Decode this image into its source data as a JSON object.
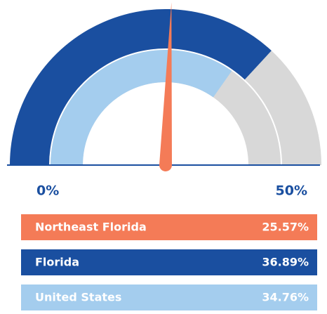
{
  "chart_data": {
    "type": "gauge",
    "ylim": [
      0,
      50
    ],
    "yticks": [
      {
        "value": 0,
        "label": "0%"
      },
      {
        "value": 50,
        "label": "50%"
      }
    ],
    "series": [
      {
        "name": "Northeast Florida",
        "color": "#f47b57",
        "values": [
          25.57
        ],
        "value_labels": [
          "25.57%"
        ]
      },
      {
        "name": "Florida",
        "color": "#1a4fa0",
        "values": [
          36.89
        ],
        "value_labels": [
          "36.89%"
        ]
      },
      {
        "name": "United States",
        "color": "#a4cdee",
        "values": [
          34.76
        ],
        "value_labels": [
          "34.76%"
        ]
      }
    ]
  }
}
